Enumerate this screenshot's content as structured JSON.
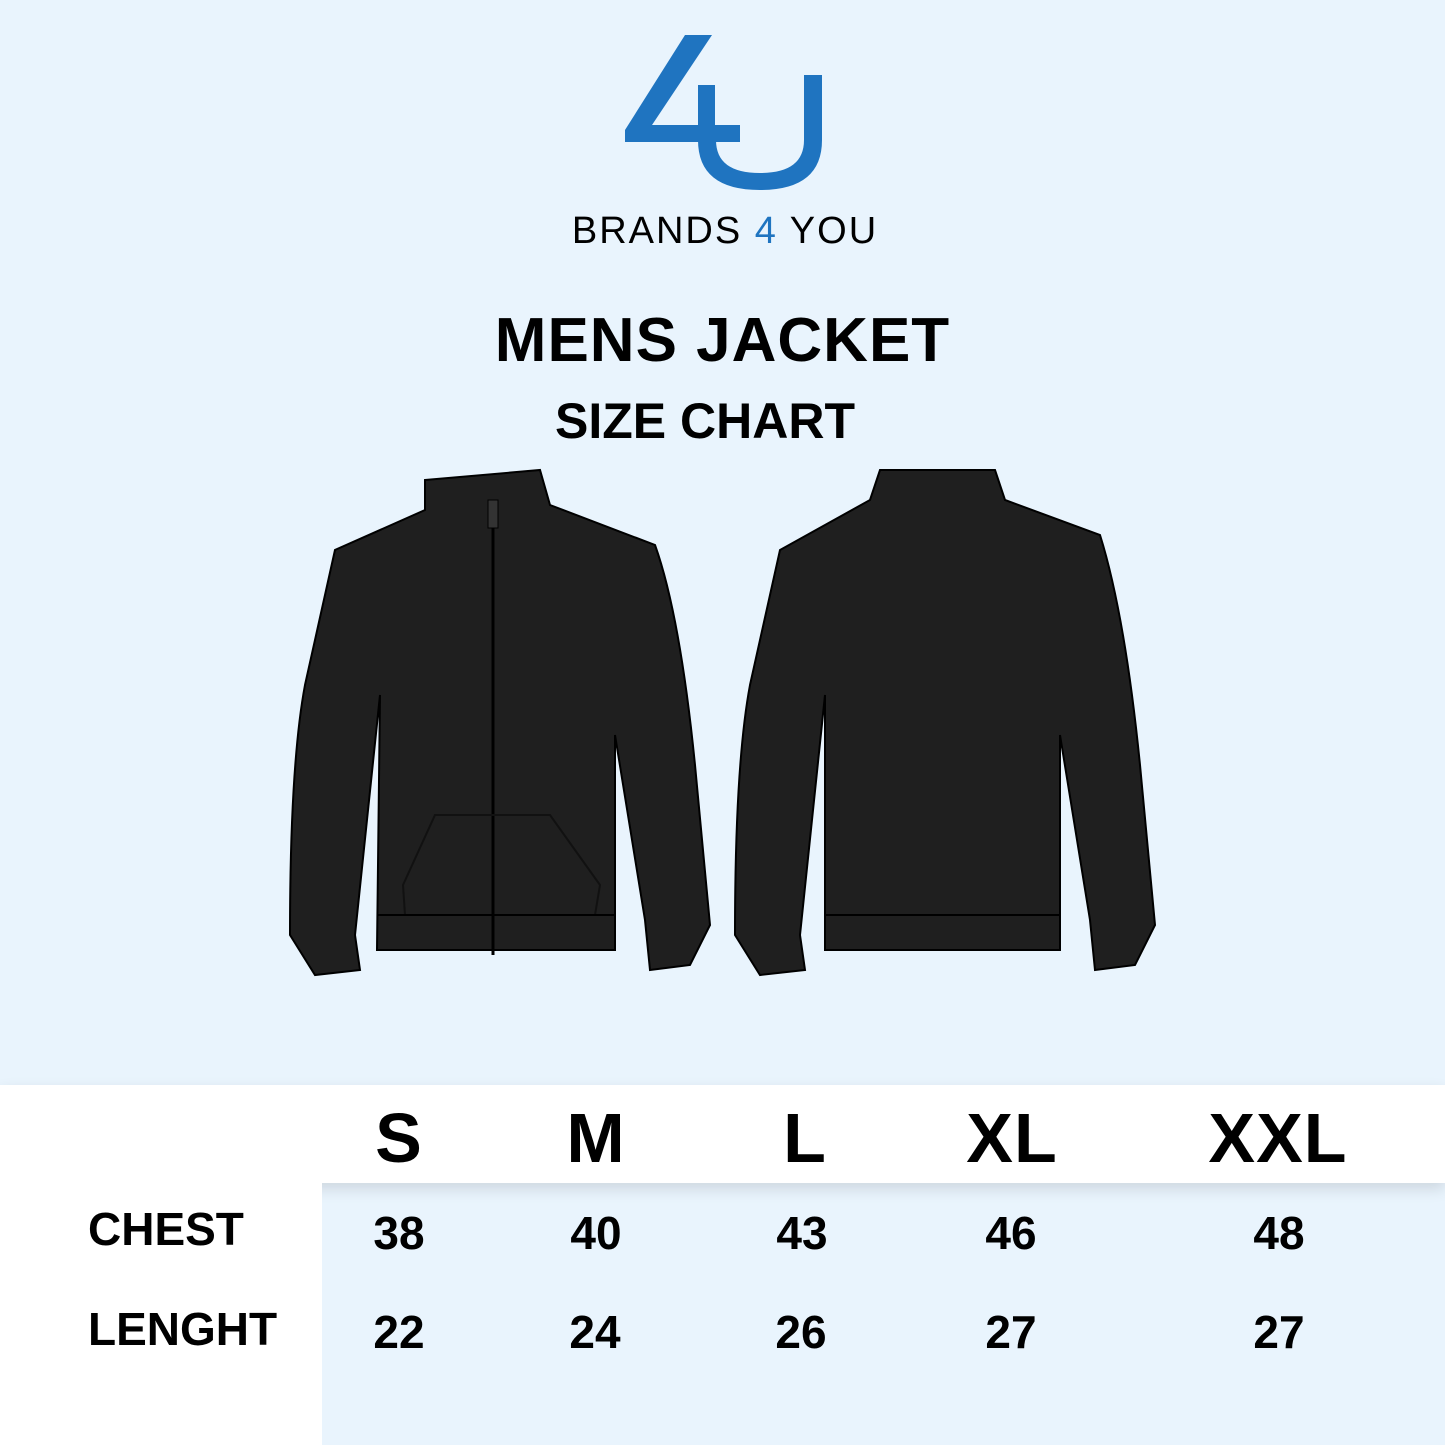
{
  "brand": {
    "logo_text": "4U",
    "name_before": "BRANDS",
    "name_four": "4",
    "name_after": "YOU",
    "accent": "#1f74c0"
  },
  "title": "MENS JACKET",
  "subtitle": "SIZE CHART",
  "images": {
    "front": "jacket-front",
    "back": "jacket-back"
  },
  "table": {
    "sizes": [
      "S",
      "M",
      "L",
      "XL",
      "XXL"
    ],
    "rows": [
      {
        "label": "CHEST",
        "values": [
          "38",
          "40",
          "43",
          "46",
          "48"
        ]
      },
      {
        "label": "LENGHT",
        "values": [
          "22",
          "24",
          "26",
          "27",
          "27"
        ]
      }
    ]
  }
}
